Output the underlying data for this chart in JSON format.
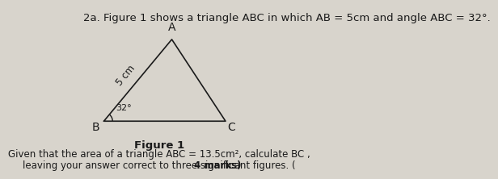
{
  "title_text": "2a. Figure 1 shows a triangle ABC in which AB = 5cm and angle ABC = 32°.",
  "figure_label": "Figure 1",
  "caption_line1": "Given that the area of a triangle ABC = 13.5cm², calculate BC ,",
  "caption_line2": "leaving your answer correct to three significant figures. ( 4 marks)",
  "vertex_B": [
    0.15,
    0.28
  ],
  "vertex_C": [
    0.92,
    0.28
  ],
  "vertex_A": [
    0.58,
    0.8
  ],
  "label_B": "B",
  "label_C": "C",
  "label_A": "A",
  "ab_label": "5 cm",
  "angle_label": "32°",
  "bg_color": "#d8d4cc",
  "line_color": "#1a1a1a",
  "text_color": "#1a1a1a",
  "title_fontsize": 9.5,
  "label_fontsize": 10,
  "caption_fontsize": 8.5,
  "fig_label_fontsize": 9.5
}
